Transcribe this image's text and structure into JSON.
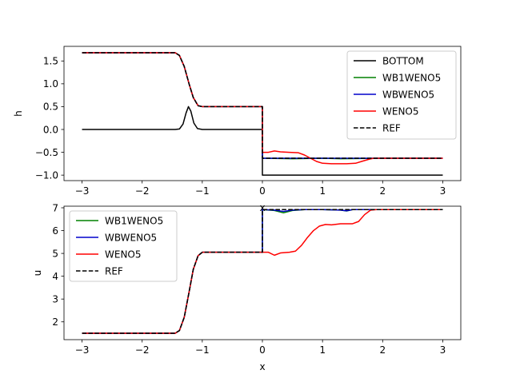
{
  "chart_data": [
    {
      "type": "line",
      "title": "",
      "xlabel": "x",
      "ylabel": "h",
      "xlim": [
        -3.3,
        3.3
      ],
      "ylim": [
        -1.12,
        1.82
      ],
      "xticks": [
        -3,
        -2,
        -1,
        0,
        1,
        2,
        3
      ],
      "xtick_labels": [
        "−3",
        "−2",
        "−1",
        "0",
        "1",
        "2",
        "3"
      ],
      "yticks": [
        -1.0,
        -0.5,
        0.0,
        0.5,
        1.0,
        1.5
      ],
      "ytick_labels": [
        "−1.0",
        "−0.5",
        "0.0",
        "0.5",
        "1.0",
        "1.5"
      ],
      "grid": false,
      "legend_position": "top-right",
      "series": [
        {
          "name": "BOTTOM",
          "color": "#000000",
          "dash": "solid",
          "points": [
            [
              -3,
              0
            ],
            [
              -1.45,
              0
            ],
            [
              -1.38,
              0.01
            ],
            [
              -1.32,
              0.12
            ],
            [
              -1.27,
              0.36
            ],
            [
              -1.23,
              0.5
            ],
            [
              -1.19,
              0.4
            ],
            [
              -1.14,
              0.14
            ],
            [
              -1.08,
              0.02
            ],
            [
              -1.0,
              0
            ],
            [
              0,
              0
            ],
            [
              0,
              -1.0
            ],
            [
              3,
              -1.0
            ]
          ]
        },
        {
          "name": "WB1WENO5",
          "color": "#008000",
          "dash": "solid",
          "points": [
            [
              -3,
              1.68
            ],
            [
              -1.45,
              1.68
            ],
            [
              -1.38,
              1.62
            ],
            [
              -1.3,
              1.38
            ],
            [
              -1.22,
              1.0
            ],
            [
              -1.15,
              0.7
            ],
            [
              -1.07,
              0.52
            ],
            [
              -1.0,
              0.5
            ],
            [
              0,
              0.5
            ],
            [
              0,
              -0.63
            ],
            [
              0.5,
              -0.64
            ],
            [
              1.0,
              -0.63
            ],
            [
              1.3,
              -0.64
            ],
            [
              2.0,
              -0.63
            ],
            [
              3,
              -0.63
            ]
          ]
        },
        {
          "name": "WBWENO5",
          "color": "#0000cc",
          "dash": "solid",
          "points": [
            [
              -3,
              1.68
            ],
            [
              -1.45,
              1.68
            ],
            [
              -1.38,
              1.62
            ],
            [
              -1.3,
              1.38
            ],
            [
              -1.22,
              1.0
            ],
            [
              -1.15,
              0.7
            ],
            [
              -1.07,
              0.52
            ],
            [
              -1.0,
              0.5
            ],
            [
              0,
              0.5
            ],
            [
              0,
              -0.63
            ],
            [
              0.5,
              -0.63
            ],
            [
              1.0,
              -0.63
            ],
            [
              1.3,
              -0.63
            ],
            [
              2.0,
              -0.63
            ],
            [
              3,
              -0.63
            ]
          ]
        },
        {
          "name": "WENO5",
          "color": "#ff0000",
          "dash": "solid",
          "points": [
            [
              -3,
              1.68
            ],
            [
              -1.45,
              1.68
            ],
            [
              -1.38,
              1.62
            ],
            [
              -1.3,
              1.38
            ],
            [
              -1.22,
              1.0
            ],
            [
              -1.15,
              0.7
            ],
            [
              -1.07,
              0.52
            ],
            [
              -1.0,
              0.5
            ],
            [
              0,
              0.5
            ],
            [
              0,
              -0.5
            ],
            [
              0.1,
              -0.5
            ],
            [
              0.2,
              -0.47
            ],
            [
              0.3,
              -0.49
            ],
            [
              0.45,
              -0.5
            ],
            [
              0.6,
              -0.51
            ],
            [
              0.7,
              -0.56
            ],
            [
              0.8,
              -0.63
            ],
            [
              0.9,
              -0.7
            ],
            [
              1.0,
              -0.74
            ],
            [
              1.15,
              -0.75
            ],
            [
              1.4,
              -0.75
            ],
            [
              1.55,
              -0.74
            ],
            [
              1.65,
              -0.7
            ],
            [
              1.78,
              -0.65
            ],
            [
              1.85,
              -0.63
            ],
            [
              3,
              -0.63
            ]
          ]
        },
        {
          "name": "REF",
          "color": "#000000",
          "dash": "dashed",
          "points": [
            [
              -3,
              1.68
            ],
            [
              -1.45,
              1.68
            ],
            [
              -1.38,
              1.62
            ],
            [
              -1.3,
              1.38
            ],
            [
              -1.22,
              1.0
            ],
            [
              -1.15,
              0.7
            ],
            [
              -1.07,
              0.52
            ],
            [
              -1.0,
              0.5
            ],
            [
              0,
              0.5
            ],
            [
              0,
              -0.63
            ],
            [
              3,
              -0.63
            ]
          ]
        }
      ]
    },
    {
      "type": "line",
      "title": "",
      "xlabel": "x",
      "ylabel": "u",
      "xlim": [
        -3.3,
        3.3
      ],
      "ylim": [
        1.22,
        7.07
      ],
      "xticks": [
        -3,
        -2,
        -1,
        0,
        1,
        2,
        3
      ],
      "xtick_labels": [
        "−3",
        "−2",
        "−1",
        "0",
        "1",
        "2",
        "3"
      ],
      "yticks": [
        2,
        3,
        4,
        5,
        6,
        7
      ],
      "ytick_labels": [
        "2",
        "3",
        "4",
        "5",
        "6",
        "7"
      ],
      "grid": false,
      "legend_position": "top-left",
      "series": [
        {
          "name": "WB1WENO5",
          "color": "#008000",
          "dash": "solid",
          "points": [
            [
              -3,
              1.5
            ],
            [
              -1.45,
              1.5
            ],
            [
              -1.38,
              1.62
            ],
            [
              -1.3,
              2.2
            ],
            [
              -1.22,
              3.3
            ],
            [
              -1.15,
              4.3
            ],
            [
              -1.07,
              4.9
            ],
            [
              -1.0,
              5.05
            ],
            [
              0,
              5.05
            ],
            [
              0,
              6.92
            ],
            [
              0.2,
              6.88
            ],
            [
              0.35,
              6.78
            ],
            [
              0.5,
              6.88
            ],
            [
              0.7,
              6.92
            ],
            [
              1.0,
              6.92
            ],
            [
              1.3,
              6.9
            ],
            [
              1.4,
              6.86
            ],
            [
              1.5,
              6.92
            ],
            [
              3,
              6.92
            ]
          ]
        },
        {
          "name": "WBWENO5",
          "color": "#0000cc",
          "dash": "solid",
          "points": [
            [
              -3,
              1.5
            ],
            [
              -1.45,
              1.5
            ],
            [
              -1.38,
              1.62
            ],
            [
              -1.3,
              2.2
            ],
            [
              -1.22,
              3.3
            ],
            [
              -1.15,
              4.3
            ],
            [
              -1.07,
              4.9
            ],
            [
              -1.0,
              5.05
            ],
            [
              0,
              5.05
            ],
            [
              0,
              6.92
            ],
            [
              0.2,
              6.9
            ],
            [
              0.35,
              6.84
            ],
            [
              0.5,
              6.9
            ],
            [
              0.7,
              6.92
            ],
            [
              1.0,
              6.92
            ],
            [
              1.3,
              6.9
            ],
            [
              1.4,
              6.87
            ],
            [
              1.5,
              6.92
            ],
            [
              3,
              6.92
            ]
          ]
        },
        {
          "name": "WENO5",
          "color": "#ff0000",
          "dash": "solid",
          "points": [
            [
              -3,
              1.5
            ],
            [
              -1.45,
              1.5
            ],
            [
              -1.38,
              1.62
            ],
            [
              -1.3,
              2.2
            ],
            [
              -1.22,
              3.3
            ],
            [
              -1.15,
              4.3
            ],
            [
              -1.07,
              4.9
            ],
            [
              -1.0,
              5.05
            ],
            [
              0,
              5.05
            ],
            [
              0.1,
              5.05
            ],
            [
              0.2,
              4.92
            ],
            [
              0.3,
              5.02
            ],
            [
              0.45,
              5.05
            ],
            [
              0.55,
              5.1
            ],
            [
              0.65,
              5.35
            ],
            [
              0.75,
              5.7
            ],
            [
              0.85,
              6.0
            ],
            [
              0.95,
              6.2
            ],
            [
              1.05,
              6.27
            ],
            [
              1.15,
              6.25
            ],
            [
              1.3,
              6.3
            ],
            [
              1.5,
              6.3
            ],
            [
              1.6,
              6.4
            ],
            [
              1.7,
              6.7
            ],
            [
              1.8,
              6.9
            ],
            [
              1.9,
              6.92
            ],
            [
              3,
              6.92
            ]
          ]
        },
        {
          "name": "REF",
          "color": "#000000",
          "dash": "dashed",
          "points": [
            [
              -3,
              1.5
            ],
            [
              -1.45,
              1.5
            ],
            [
              -1.38,
              1.62
            ],
            [
              -1.3,
              2.2
            ],
            [
              -1.22,
              3.3
            ],
            [
              -1.15,
              4.3
            ],
            [
              -1.07,
              4.9
            ],
            [
              -1.0,
              5.05
            ],
            [
              0,
              5.05
            ],
            [
              0,
              6.92
            ],
            [
              3,
              6.92
            ]
          ]
        }
      ]
    }
  ]
}
